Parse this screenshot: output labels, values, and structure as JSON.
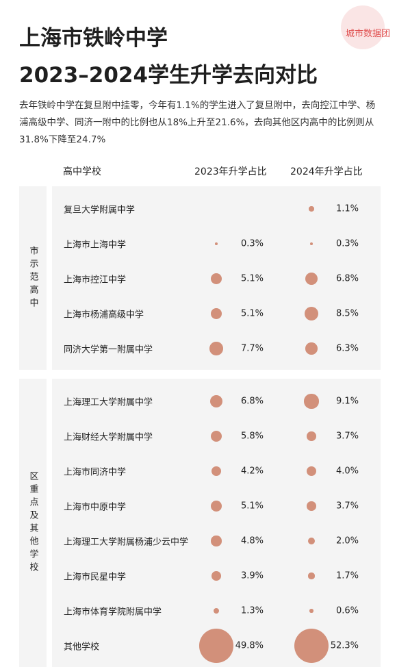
{
  "header": {
    "title_line1": "上海市铁岭中学",
    "title_line2": "2023–2024学生升学去向对比",
    "logo": "城市数据团",
    "intro": "去年铁岭中学在复旦附中挂零，今年有1.1%的学生进入了复旦附中，去向控江中学、杨浦高级中学、同济一附中的比例也从18%上升至21.6%，去向其他区内高中的比例则从31.8%下降至24.7%"
  },
  "table": {
    "columns": [
      "高中学校",
      "2023年升学占比",
      "2024年升学占比"
    ],
    "groups": [
      {
        "label": "市示范高中",
        "rows": [
          {
            "school": "复旦大学附属中学",
            "v2023": null,
            "l2023": null,
            "v2024": 1.1,
            "l2024": "1.1%"
          },
          {
            "school": "上海市上海中学",
            "v2023": 0.3,
            "l2023": "0.3%",
            "v2024": 0.3,
            "l2024": "0.3%"
          },
          {
            "school": "上海市控江中学",
            "v2023": 5.1,
            "l2023": "5.1%",
            "v2024": 6.8,
            "l2024": "6.8%"
          },
          {
            "school": "上海市杨浦高级中学",
            "v2023": 5.1,
            "l2023": "5.1%",
            "v2024": 8.5,
            "l2024": "8.5%"
          },
          {
            "school": "同济大学第一附属中学",
            "v2023": 7.7,
            "l2023": "7.7%",
            "v2024": 6.3,
            "l2024": "6.3%"
          }
        ]
      },
      {
        "label": "区重点及其他学校",
        "rows": [
          {
            "school": "上海理工大学附属中学",
            "v2023": 6.8,
            "l2023": "6.8%",
            "v2024": 9.1,
            "l2024": "9.1%"
          },
          {
            "school": "上海财经大学附属中学",
            "v2023": 5.8,
            "l2023": "5.8%",
            "v2024": 3.7,
            "l2024": "3.7%"
          },
          {
            "school": "上海市同济中学",
            "v2023": 4.2,
            "l2023": "4.2%",
            "v2024": 4.0,
            "l2024": "4.0%"
          },
          {
            "school": "上海市中原中学",
            "v2023": 5.1,
            "l2023": "5.1%",
            "v2024": 3.7,
            "l2024": "3.7%"
          },
          {
            "school": "上海理工大学附属杨浦少云中学",
            "v2023": 4.8,
            "l2023": "4.8%",
            "v2024": 2.0,
            "l2024": "2.0%"
          },
          {
            "school": "上海市民星中学",
            "v2023": 3.9,
            "l2023": "3.9%",
            "v2024": 1.7,
            "l2024": "1.7%"
          },
          {
            "school": "上海市体育学院附属中学",
            "v2023": 1.3,
            "l2023": "1.3%",
            "v2024": 0.6,
            "l2024": "0.6%"
          },
          {
            "school": "其他学校",
            "v2023": 49.8,
            "l2023": "49.8%",
            "v2024": 52.3,
            "l2024": "52.3%"
          }
        ]
      }
    ]
  }
}
